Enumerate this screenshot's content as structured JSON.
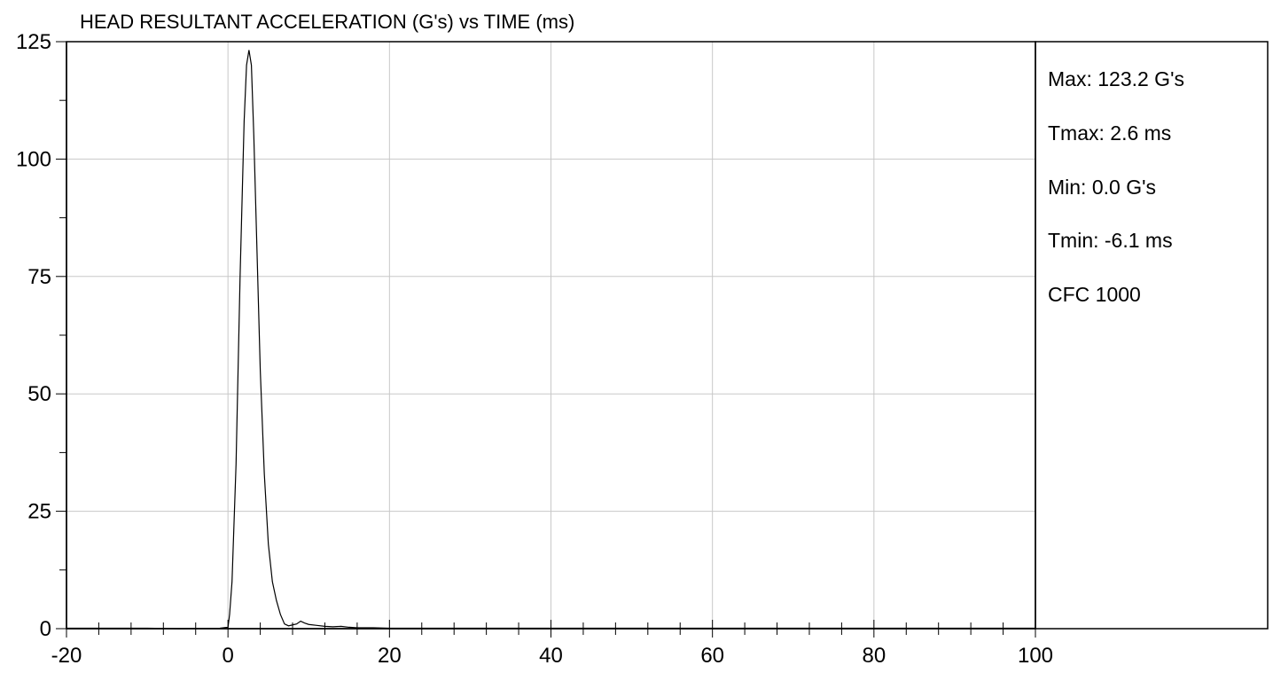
{
  "chart_data": {
    "type": "line",
    "title": "HEAD RESULTANT ACCELERATION (G's) vs TIME (ms)",
    "xlabel": "",
    "ylabel": "",
    "xlim": [
      -20,
      100
    ],
    "ylim": [
      0,
      125
    ],
    "x_ticks": [
      -20,
      0,
      20,
      40,
      60,
      80,
      100
    ],
    "y_ticks": [
      0,
      25,
      50,
      75,
      100,
      125
    ],
    "grid": true,
    "series": [
      {
        "x": [
          -20,
          -10,
          -6.1,
          -1,
          0,
          0.2,
          0.5,
          1,
          1.5,
          2,
          2.3,
          2.6,
          2.9,
          3.2,
          3.6,
          4,
          4.5,
          5,
          5.5,
          6,
          6.5,
          7,
          7.5,
          8,
          8.5,
          9,
          9.5,
          10,
          11,
          12,
          13,
          14,
          15,
          16,
          18,
          20,
          30,
          40,
          50,
          60,
          70,
          80,
          90,
          100
        ],
        "y": [
          0.1,
          0.1,
          0,
          0.1,
          0.3,
          3,
          10,
          35,
          75,
          108,
          120,
          123.2,
          120,
          105,
          80,
          55,
          33,
          18,
          10,
          6,
          3,
          1,
          0.6,
          0.8,
          1.0,
          1.6,
          1.2,
          0.9,
          0.7,
          0.5,
          0.4,
          0.5,
          0.3,
          0.2,
          0.2,
          0.1,
          0.1,
          0.1,
          0.1,
          0.1,
          0.1,
          0.1,
          0.1,
          0.1
        ]
      }
    ]
  },
  "stats": {
    "max": "Max: 123.2 G's",
    "tmax": "Tmax: 2.6 ms",
    "min": "Min: 0.0 G's",
    "tmin": "Tmin: -6.1 ms",
    "cfc": "CFC 1000"
  }
}
